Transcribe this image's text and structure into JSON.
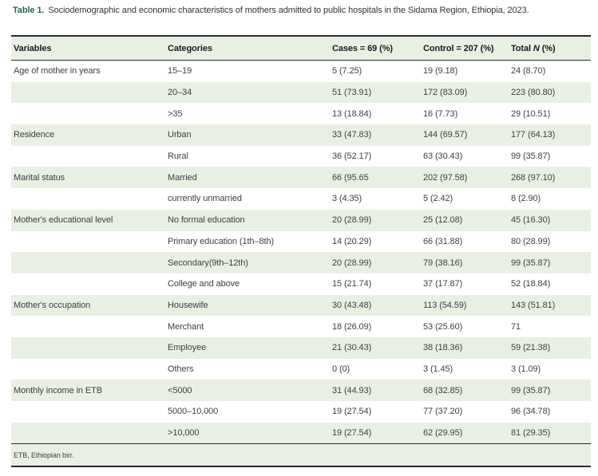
{
  "caption": {
    "label": "Table 1.",
    "text": "Sociodemographic and economic characteristics of mothers admitted to public hospitals in the Sidama Region, Ethiopia, 2023."
  },
  "table": {
    "columns": [
      "Variables",
      "Categories",
      "Cases = 69 (%)",
      "Control = 207 (%)"
    ],
    "total_header": {
      "pre": "Total ",
      "italic": "N",
      "post": " (%)"
    },
    "rows": [
      {
        "variable": "Age of mother in years",
        "category": "15–19",
        "cases": "5 (7.25)",
        "control": "19 (9.18)",
        "total": "24 (8.70)"
      },
      {
        "variable": "",
        "category": "20–34",
        "cases": "51 (73.91)",
        "control": "172 (83.09)",
        "total": "223 (80.80)"
      },
      {
        "variable": "",
        "category": ">35",
        "cases": "13 (18.84)",
        "control": "16 (7.73)",
        "total": "29 (10.51)"
      },
      {
        "variable": "Residence",
        "category": "Urban",
        "cases": "33 (47.83)",
        "control": "144 (69.57)",
        "total": "177 (64.13)"
      },
      {
        "variable": "",
        "category": "Rural",
        "cases": "36 (52.17)",
        "control": "63 (30.43)",
        "total": "99 (35.87)"
      },
      {
        "variable": "Marital status",
        "category": "Married",
        "cases": "66 (95.65",
        "control": "202 (97.58)",
        "total": "268 (97.10)"
      },
      {
        "variable": "",
        "category": "currently unmarried",
        "cases": "3 (4.35)",
        "control": "5 (2.42)",
        "total": "8 (2.90)"
      },
      {
        "variable": "Mother's educational level",
        "category": "No formal education",
        "cases": "20 (28.99)",
        "control": "25 (12.08)",
        "total": "45 (16.30)"
      },
      {
        "variable": "",
        "category": "Primary education (1th–8th)",
        "cases": "14 (20.29)",
        "control": "66 (31.88)",
        "total": "80 (28.99)"
      },
      {
        "variable": "",
        "category": "Secondary(9th–12th)",
        "cases": "20 (28.99)",
        "control": "79 (38.16)",
        "total": "99 (35.87)"
      },
      {
        "variable": "",
        "category": "College and above",
        "cases": "15 (21.74)",
        "control": "37 (17.87)",
        "total": "52 (18.84)"
      },
      {
        "variable": "Mother's occupation",
        "category": "Housewife",
        "cases": "30 (43.48)",
        "control": "113 (54.59)",
        "total": "143 (51.81)"
      },
      {
        "variable": "",
        "category": "Merchant",
        "cases": "18 (26.09)",
        "control": "53 (25.60)",
        "total": "71"
      },
      {
        "variable": "",
        "category": "Employee",
        "cases": "21 (30.43)",
        "control": "38 (18.36)",
        "total": "59 (21.38)"
      },
      {
        "variable": "",
        "category": "Others",
        "cases": "0 (0)",
        "control": "3 (1.45)",
        "total": "3 (1.09)"
      },
      {
        "variable": "Monthly income in ETB",
        "category": "<5000",
        "cases": "31 (44.93)",
        "control": "68 (32.85)",
        "total": "99 (35.87)"
      },
      {
        "variable": "",
        "category": "5000–10,000",
        "cases": "19 (27.54)",
        "control": "77 (37.20)",
        "total": "96 (34.78)"
      },
      {
        "variable": "",
        "category": ">10,000",
        "cases": "19 (27.54)",
        "control": "62 (29.95)",
        "total": "81 (29.35)"
      }
    ],
    "footnote": "ETB, Ethiopian birr."
  },
  "colors": {
    "accent_green": "#1f6b47",
    "row_green": "#e8f0e3",
    "rule_dark": "#2d2d2d"
  }
}
